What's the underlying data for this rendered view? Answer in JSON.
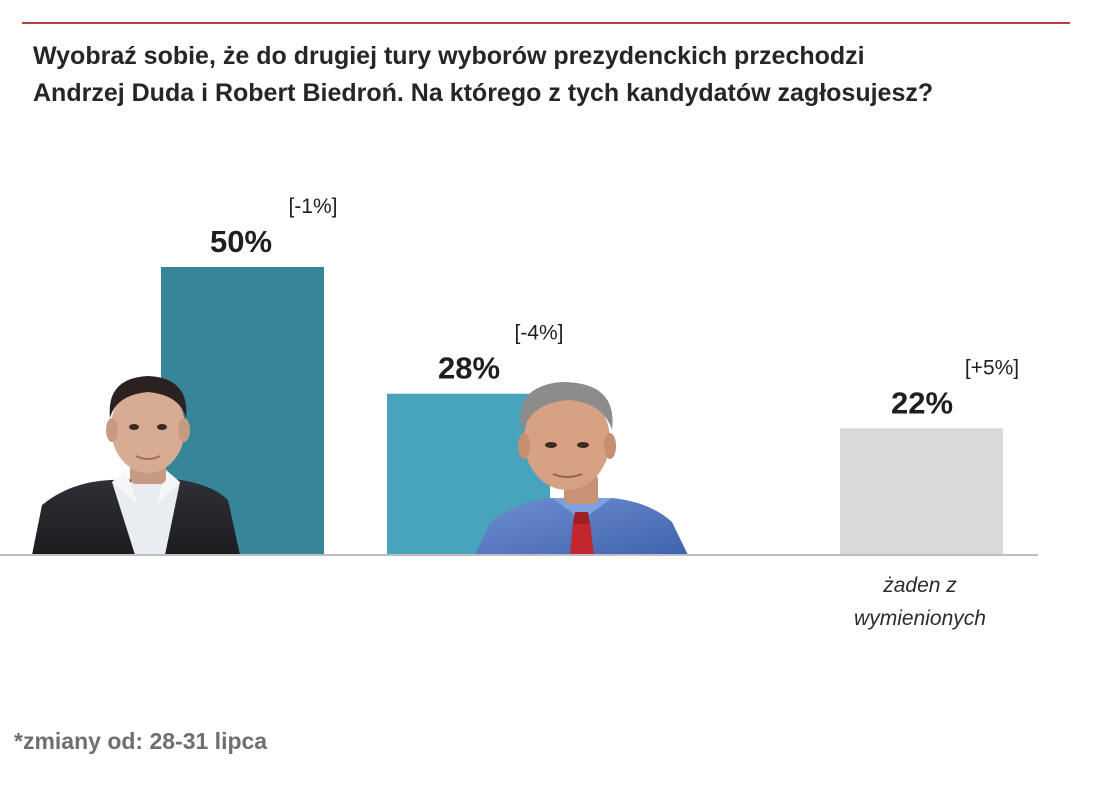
{
  "title": {
    "line1": "Wyobraź sobie, że do drugiej tury wyborów prezydenckich przechodzi",
    "line2": "Andrzej Duda i Robert Biedroń. Na którego z tych kandydatów zagłosujesz?"
  },
  "footnote": "*zmiany od: 28-31 lipca",
  "colors": {
    "rule": "#b7433f",
    "duda_bar": "#378599",
    "biedron_bar": "#48a4bc",
    "none_bar": "#d9d9d9",
    "axis": "#bfbfbf"
  },
  "chart_data": {
    "type": "bar",
    "categories": [
      "",
      "",
      "żaden z wymienionych"
    ],
    "values": [
      50,
      28,
      22
    ],
    "value_labels": [
      "50%",
      "28%",
      "22%"
    ],
    "change_labels": [
      "[-1%]",
      "[-4%]",
      "[+5%]"
    ],
    "category_label_lines": [
      "żaden z",
      "wymienionych"
    ],
    "unit": "%",
    "ylim": [
      0,
      50
    ],
    "grid": false,
    "legend": "none"
  }
}
